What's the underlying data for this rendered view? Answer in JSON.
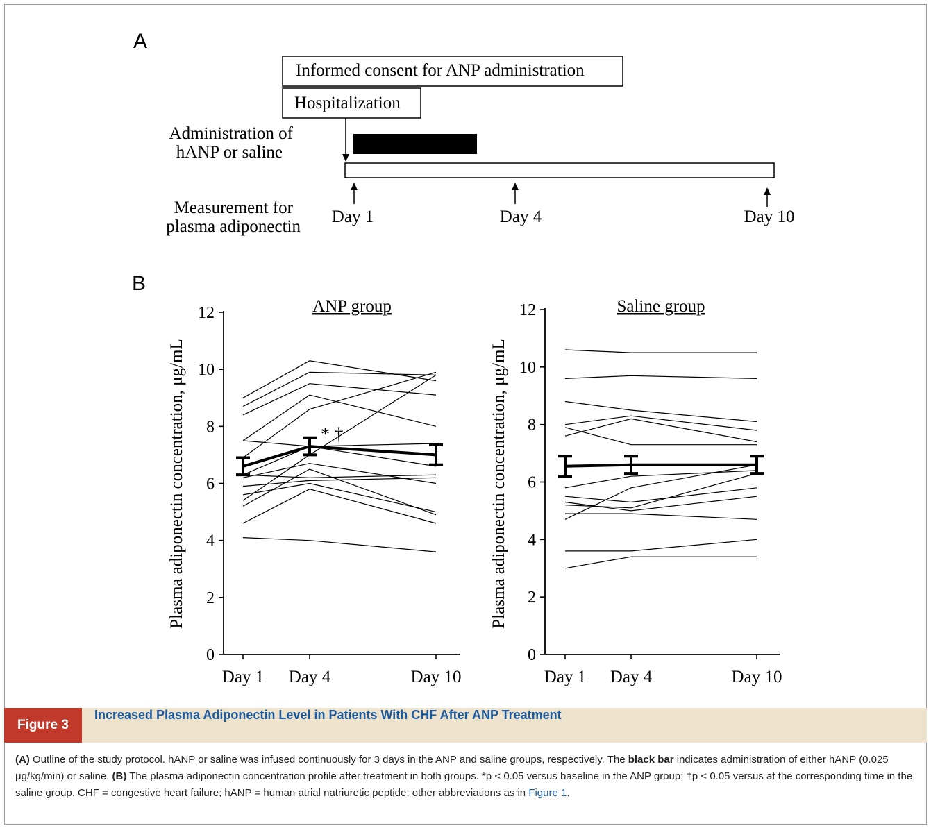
{
  "panel_a": {
    "label": "A",
    "consent_box": "Informed consent for ANP administration",
    "hospital_box": "Hospitalization",
    "admin_label_1": "Administration of",
    "admin_label_2": "hANP or saline",
    "meas_label_1": "Measurement for",
    "meas_label_2": "plasma adiponectin",
    "days": [
      "Day 1",
      "Day 4",
      "Day 10"
    ]
  },
  "panel_b": {
    "label": "B"
  },
  "chart_data": [
    {
      "type": "line",
      "title": "ANP group",
      "ylabel": "Plasma adiponectin concentration, μg/mL",
      "categories": [
        "Day 1",
        "Day 4",
        "Day 10"
      ],
      "ylim": [
        0,
        12
      ],
      "yticks": [
        0,
        2,
        4,
        6,
        8,
        10,
        12
      ],
      "annotation": "* †",
      "mean": {
        "values": [
          6.6,
          7.3,
          7.0
        ],
        "sem": [
          0.3,
          0.3,
          0.35
        ]
      },
      "individual": [
        [
          9.0,
          10.3,
          9.6
        ],
        [
          8.7,
          9.9,
          9.8
        ],
        [
          8.4,
          9.5,
          9.1
        ],
        [
          7.5,
          9.1,
          8.0
        ],
        [
          7.5,
          7.3,
          7.4
        ],
        [
          6.9,
          8.6,
          9.9
        ],
        [
          6.3,
          7.3,
          6.6
        ],
        [
          6.3,
          6.2,
          6.3
        ],
        [
          6.2,
          6.7,
          6.0
        ],
        [
          5.9,
          6.1,
          6.2
        ],
        [
          5.6,
          6.0,
          5.0
        ],
        [
          5.4,
          7.0,
          9.8
        ],
        [
          5.2,
          6.5,
          4.9
        ],
        [
          4.6,
          5.8,
          4.6
        ],
        [
          4.1,
          4.0,
          3.6
        ]
      ]
    },
    {
      "type": "line",
      "title": "Saline group",
      "ylabel": "Plasma adiponectin concentration, μg/mL",
      "categories": [
        "Day 1",
        "Day 4",
        "Day 10"
      ],
      "ylim": [
        0,
        12
      ],
      "yticks": [
        0,
        2,
        4,
        6,
        8,
        10,
        12
      ],
      "mean": {
        "values": [
          6.55,
          6.6,
          6.6
        ],
        "sem": [
          0.35,
          0.3,
          0.3
        ]
      },
      "individual": [
        [
          10.6,
          10.5,
          10.5
        ],
        [
          9.6,
          9.7,
          9.6
        ],
        [
          8.8,
          8.5,
          8.1
        ],
        [
          8.0,
          8.3,
          7.8
        ],
        [
          7.9,
          7.3,
          7.3
        ],
        [
          7.6,
          8.2,
          7.4
        ],
        [
          5.8,
          6.2,
          6.4
        ],
        [
          5.5,
          5.3,
          5.8
        ],
        [
          5.3,
          5.0,
          5.5
        ],
        [
          5.2,
          5.1,
          6.3
        ],
        [
          4.9,
          4.9,
          4.7
        ],
        [
          4.7,
          5.8,
          6.6
        ],
        [
          3.6,
          3.6,
          4.0
        ],
        [
          3.0,
          3.4,
          3.4
        ]
      ]
    }
  ],
  "caption": {
    "figure_number": "Figure 3",
    "title": "Increased Plasma Adiponectin Level in Patients With CHF After ANP Treatment",
    "a_label": "(A)",
    "a_text": " Outline of the study protocol. hANP or saline was infused continuously for 3 days in the ANP and saline groups, respectively. The ",
    "bold_phrase": "black bar",
    "a_text_2": " indicates administration of either hANP (0.025 μg/kg/min) or saline. ",
    "b_label": "(B)",
    "b_text": " The plasma adiponectin concentration profile after treatment in both groups. *p < 0.05 versus baseline in the ANP group; †p < 0.05 versus at the corresponding time in the saline group. CHF = congestive heart failure; hANP = human atrial natriuretic peptide; other abbreviations as in ",
    "link_text": "Figure 1",
    "end": "."
  }
}
